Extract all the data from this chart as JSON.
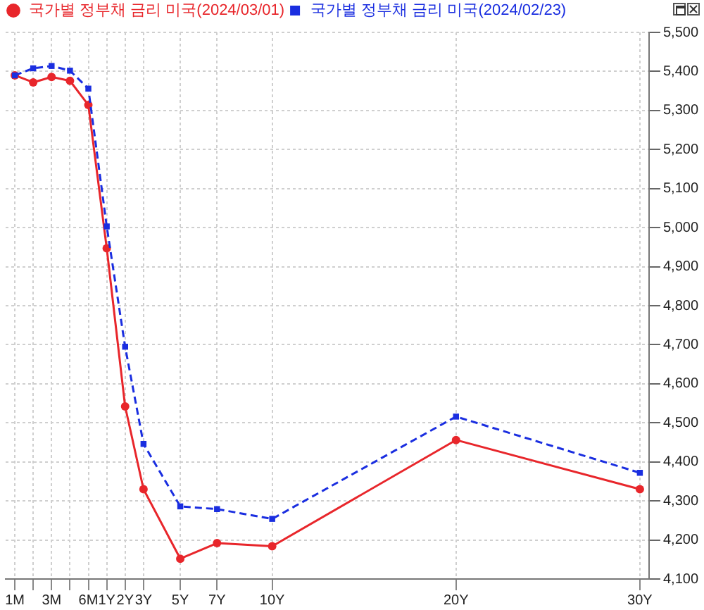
{
  "chart_data": {
    "type": "line",
    "categories": [
      "1M",
      null,
      "3M",
      null,
      "6M",
      "1Y",
      "2Y",
      "3Y",
      null,
      "5Y",
      null,
      "7Y",
      null,
      null,
      "10Y",
      null,
      null,
      null,
      null,
      null,
      null,
      null,
      null,
      null,
      "20Y",
      null,
      null,
      null,
      null,
      null,
      null,
      null,
      null,
      null,
      "30Y"
    ],
    "series": [
      {
        "name": "국가별 정부채 금리 미국(2024/03/01)",
        "color": "#e8262b",
        "marker": "circle",
        "line_style": "solid",
        "values": [
          5390,
          5372,
          5386,
          5376,
          5314,
          4947,
          4542,
          4330,
          null,
          4152,
          null,
          4192,
          null,
          null,
          4184,
          null,
          null,
          null,
          null,
          null,
          null,
          null,
          null,
          null,
          4456,
          null,
          null,
          null,
          null,
          null,
          null,
          null,
          null,
          null,
          4330
        ]
      },
      {
        "name": "국가별 정부채 금리 미국(2024/02/23)",
        "color": "#1a2ee0",
        "marker": "square",
        "line_style": "dashed",
        "values": [
          5390,
          5408,
          5414,
          5402,
          5356,
          5003,
          4695,
          4446,
          null,
          4286,
          null,
          4279,
          null,
          null,
          4254,
          null,
          null,
          null,
          null,
          null,
          null,
          null,
          null,
          null,
          4516,
          null,
          null,
          null,
          null,
          null,
          null,
          null,
          null,
          null,
          4372
        ]
      }
    ],
    "ylim": [
      4100,
      5500
    ],
    "yticks": [
      {
        "value": 4100,
        "label": "4,100"
      },
      {
        "value": 4200,
        "label": "4,200"
      },
      {
        "value": 4300,
        "label": "4,300"
      },
      {
        "value": 4400,
        "label": "4,400"
      },
      {
        "value": 4500,
        "label": "4,500"
      },
      {
        "value": 4600,
        "label": "4,600"
      },
      {
        "value": 4700,
        "label": "4,700"
      },
      {
        "value": 4800,
        "label": "4,800"
      },
      {
        "value": 4900,
        "label": "4,900"
      },
      {
        "value": 5000,
        "label": "5,000"
      },
      {
        "value": 5100,
        "label": "5,100"
      },
      {
        "value": 5200,
        "label": "5,200"
      },
      {
        "value": 5300,
        "label": "5,300"
      },
      {
        "value": 5400,
        "label": "5,400"
      },
      {
        "value": 5500,
        "label": "5,500"
      }
    ],
    "grid": true,
    "legend": "top left"
  }
}
